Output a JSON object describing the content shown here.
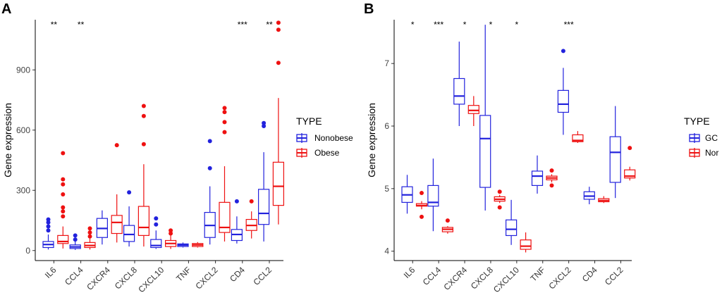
{
  "chart_data": [
    {
      "type": "box",
      "panel_label": "A",
      "ylabel": "Gene expression",
      "ylim": [
        -50,
        1150
      ],
      "yticks": [
        0,
        300,
        600,
        900
      ],
      "categories": [
        "IL6",
        "CCL4",
        "CXCR4",
        "CXCL8",
        "CXCL10",
        "TNF",
        "CXCL2",
        "CD4",
        "CCL2"
      ],
      "significance": [
        "**",
        "**",
        "",
        "",
        "",
        "",
        "",
        "***",
        "**"
      ],
      "legend": {
        "title": "TYPE",
        "entries": [
          "Nonobese",
          "Obese"
        ]
      },
      "series": [
        {
          "name": "Nonobese",
          "color": "#2222dd",
          "boxes": [
            {
              "min": 5,
              "q1": 15,
              "median": 30,
              "q3": 45,
              "max": 80,
              "outliers": [
                100,
                120,
                140,
                155
              ]
            },
            {
              "min": 3,
              "q1": 10,
              "median": 18,
              "q3": 28,
              "max": 45,
              "outliers": [
                55,
                75
              ]
            },
            {
              "min": 30,
              "q1": 65,
              "median": 110,
              "q3": 160,
              "max": 200,
              "outliers": []
            },
            {
              "min": 20,
              "q1": 45,
              "median": 80,
              "q3": 125,
              "max": 220,
              "outliers": [
                290
              ]
            },
            {
              "min": 8,
              "q1": 15,
              "median": 25,
              "q3": 55,
              "max": 100,
              "outliers": [
                130,
                160
              ]
            },
            {
              "min": 15,
              "q1": 20,
              "median": 27,
              "q3": 33,
              "max": 40,
              "outliers": []
            },
            {
              "min": 30,
              "q1": 65,
              "median": 125,
              "q3": 190,
              "max": 320,
              "outliers": [
                410,
                545
              ]
            },
            {
              "min": 35,
              "q1": 50,
              "median": 80,
              "q3": 105,
              "max": 170,
              "outliers": [
                245
              ]
            },
            {
              "min": 45,
              "q1": 130,
              "median": 185,
              "q3": 305,
              "max": 490,
              "outliers": [
                620,
                635
              ]
            }
          ]
        },
        {
          "name": "Obese",
          "color": "#ee1111",
          "boxes": [
            {
              "min": 10,
              "q1": 35,
              "median": 45,
              "q3": 75,
              "max": 120,
              "outliers": [
                170,
                195,
                215,
                280,
                330,
                355,
                485
              ]
            },
            {
              "min": 5,
              "q1": 15,
              "median": 25,
              "q3": 40,
              "max": 60,
              "outliers": [
                70,
                90,
                110
              ]
            },
            {
              "min": 40,
              "q1": 85,
              "median": 140,
              "q3": 175,
              "max": 280,
              "outliers": [
                525
              ]
            },
            {
              "min": 20,
              "q1": 75,
              "median": 115,
              "q3": 220,
              "max": 430,
              "outliers": [
                530,
                670,
                720
              ]
            },
            {
              "min": 8,
              "q1": 20,
              "median": 35,
              "q3": 50,
              "max": 75,
              "outliers": [
                85,
                100
              ]
            },
            {
              "min": 15,
              "q1": 20,
              "median": 28,
              "q3": 35,
              "max": 42,
              "outliers": []
            },
            {
              "min": 45,
              "q1": 90,
              "median": 115,
              "q3": 240,
              "max": 420,
              "outliers": [
                590,
                640,
                690,
                710
              ]
            },
            {
              "min": 60,
              "q1": 100,
              "median": 125,
              "q3": 155,
              "max": 195,
              "outliers": [
                245
              ]
            },
            {
              "min": 130,
              "q1": 225,
              "median": 320,
              "q3": 440,
              "max": 760,
              "outliers": [
                935,
                1100,
                1135
              ]
            }
          ]
        }
      ]
    },
    {
      "type": "box",
      "panel_label": "B",
      "ylabel": "Gene expression",
      "ylim": [
        3.85,
        7.7
      ],
      "yticks": [
        4,
        5,
        6,
        7
      ],
      "categories": [
        "IL6",
        "CCL4",
        "CXCR4",
        "CXCL8",
        "CXCL10",
        "TNF",
        "CXCL2",
        "CD4",
        "CCL2"
      ],
      "significance": [
        "*",
        "***",
        "*",
        "*",
        "*",
        "",
        "***",
        "",
        ""
      ],
      "legend": {
        "title": "TYPE",
        "entries": [
          "GC",
          "Nor"
        ]
      },
      "series": [
        {
          "name": "GC",
          "color": "#2222dd",
          "boxes": [
            {
              "min": 4.6,
              "q1": 4.78,
              "median": 4.9,
              "q3": 5.03,
              "max": 5.22,
              "outliers": []
            },
            {
              "min": 4.32,
              "q1": 4.72,
              "median": 4.78,
              "q3": 5.05,
              "max": 5.48,
              "outliers": []
            },
            {
              "min": 6.0,
              "q1": 6.35,
              "median": 6.48,
              "q3": 6.76,
              "max": 7.35,
              "outliers": []
            },
            {
              "min": 4.65,
              "q1": 5.02,
              "median": 5.8,
              "q3": 6.17,
              "max": 7.62,
              "outliers": []
            },
            {
              "min": 4.1,
              "q1": 4.25,
              "median": 4.35,
              "q3": 4.5,
              "max": 4.82,
              "outliers": []
            },
            {
              "min": 4.92,
              "q1": 5.05,
              "median": 5.2,
              "q3": 5.28,
              "max": 5.53,
              "outliers": []
            },
            {
              "min": 5.86,
              "q1": 6.22,
              "median": 6.35,
              "q3": 6.57,
              "max": 6.93,
              "outliers": [
                7.2
              ]
            },
            {
              "min": 4.75,
              "q1": 4.83,
              "median": 4.88,
              "q3": 4.95,
              "max": 5.03,
              "outliers": []
            },
            {
              "min": 4.85,
              "q1": 5.1,
              "median": 5.58,
              "q3": 5.83,
              "max": 6.32,
              "outliers": []
            }
          ]
        },
        {
          "name": "Nor",
          "color": "#ee1111",
          "boxes": [
            {
              "min": 4.67,
              "q1": 4.72,
              "median": 4.73,
              "q3": 4.76,
              "max": 4.8,
              "outliers": [
                4.55,
                4.93
              ]
            },
            {
              "min": 4.28,
              "q1": 4.31,
              "median": 4.35,
              "q3": 4.38,
              "max": 4.4,
              "outliers": [
                4.49
              ]
            },
            {
              "min": 6.0,
              "q1": 6.2,
              "median": 6.25,
              "q3": 6.33,
              "max": 6.48,
              "outliers": []
            },
            {
              "min": 4.77,
              "q1": 4.8,
              "median": 4.83,
              "q3": 4.87,
              "max": 4.9,
              "outliers": [
                4.7,
                4.95
              ]
            },
            {
              "min": 3.98,
              "q1": 4.03,
              "median": 4.08,
              "q3": 4.18,
              "max": 4.3,
              "outliers": []
            },
            {
              "min": 5.1,
              "q1": 5.14,
              "median": 5.17,
              "q3": 5.2,
              "max": 5.23,
              "outliers": [
                5.05,
                5.29
              ]
            },
            {
              "min": 5.73,
              "q1": 5.75,
              "median": 5.77,
              "q3": 5.86,
              "max": 5.92,
              "outliers": []
            },
            {
              "min": 4.77,
              "q1": 4.79,
              "median": 4.81,
              "q3": 4.84,
              "max": 4.88,
              "outliers": []
            },
            {
              "min": 5.13,
              "q1": 5.17,
              "median": 5.2,
              "q3": 5.3,
              "max": 5.35,
              "outliers": [
                5.65
              ]
            }
          ]
        }
      ]
    }
  ]
}
